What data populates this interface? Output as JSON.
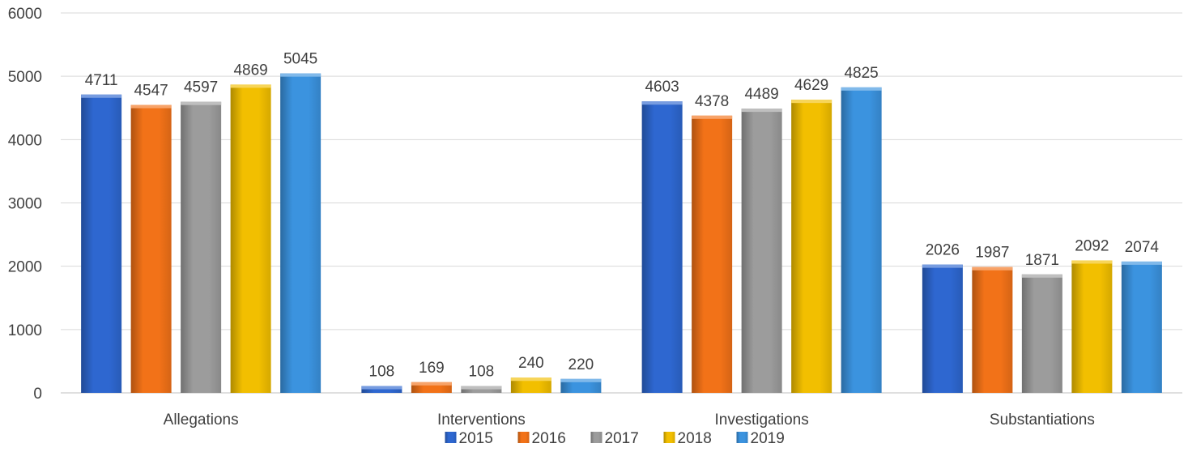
{
  "chart_data": {
    "type": "bar",
    "categories": [
      "Allegations",
      "Interventions",
      "Investigations",
      "Substantiations"
    ],
    "series": [
      {
        "name": "2015",
        "values": [
          4711,
          108,
          4603,
          2026
        ],
        "color": "#2E67D0"
      },
      {
        "name": "2016",
        "values": [
          4547,
          169,
          4378,
          1987
        ],
        "color": "#F27218"
      },
      {
        "name": "2017",
        "values": [
          4597,
          108,
          4489,
          1871
        ],
        "color": "#9C9C9C"
      },
      {
        "name": "2018",
        "values": [
          4869,
          240,
          4629,
          2092
        ],
        "color": "#F2BF00"
      },
      {
        "name": "2019",
        "values": [
          5045,
          220,
          4825,
          2074
        ],
        "color": "#3B93DF"
      }
    ],
    "ylim": [
      0,
      6000
    ],
    "yticks": [
      0,
      1000,
      2000,
      3000,
      4000,
      5000,
      6000
    ],
    "title": "",
    "xlabel": "",
    "ylabel": "",
    "grid": true,
    "legend": "bottom",
    "data_labels": true
  }
}
